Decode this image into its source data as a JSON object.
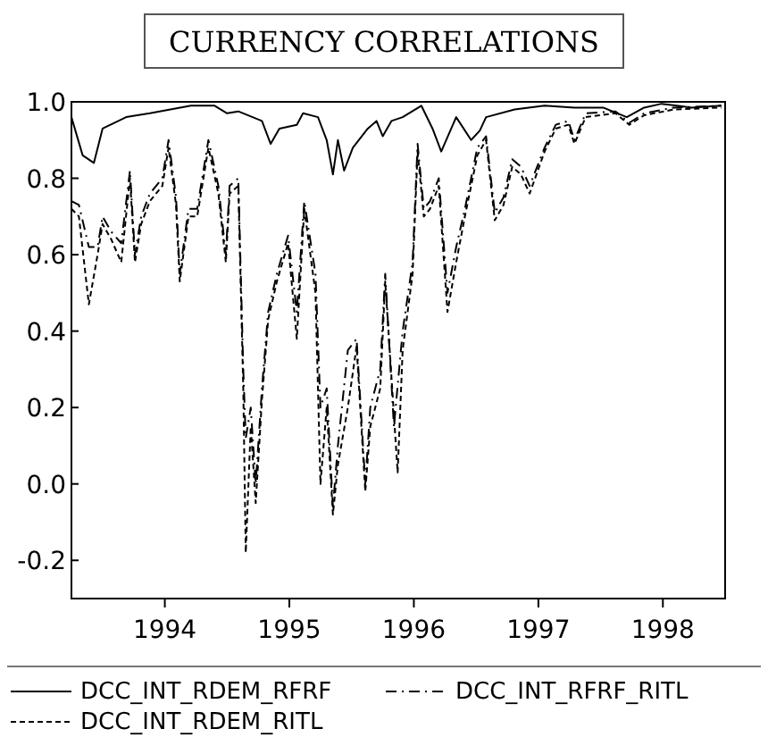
{
  "chart_data": {
    "type": "line",
    "title": "CURRENCY CORRELATIONS",
    "xlim": [
      1993.25,
      1998.5
    ],
    "xticks": [
      {
        "value": 1994,
        "label": "1994"
      },
      {
        "value": 1995,
        "label": "1995"
      },
      {
        "value": 1996,
        "label": "1996"
      },
      {
        "value": 1997,
        "label": "1997"
      },
      {
        "value": 1998,
        "label": "1998"
      }
    ],
    "ylim": [
      -0.3,
      1.0
    ],
    "yticks": [
      {
        "value": -0.2,
        "label": "-0.2"
      },
      {
        "value": 0,
        "label": "0.0"
      },
      {
        "value": 0.2,
        "label": "0.2"
      },
      {
        "value": 0.4,
        "label": "0.4"
      },
      {
        "value": 0.6,
        "label": "0.6"
      },
      {
        "value": 0.8,
        "label": "0.8"
      },
      {
        "value": 1,
        "label": "1.0"
      }
    ],
    "legend": "bottom",
    "grid": false,
    "series": [
      {
        "name": "DCC_INT_RDEM_RFRF",
        "color": "#000000",
        "line_style": "solid",
        "x": [
          1993.25,
          1993.34,
          1993.43,
          1993.5,
          1993.69,
          1993.88,
          1994.21,
          1994.4,
          1994.5,
          1994.59,
          1994.78,
          1994.85,
          1994.92,
          1995.06,
          1995.11,
          1995.23,
          1995.3,
          1995.35,
          1995.39,
          1995.44,
          1995.51,
          1995.63,
          1995.7,
          1995.75,
          1995.82,
          1995.91,
          1996.06,
          1996.15,
          1996.22,
          1996.34,
          1996.46,
          1996.53,
          1996.58,
          1996.81,
          1997.05,
          1997.29,
          1997.52,
          1997.71,
          1997.85,
          1997.99,
          1998.23,
          1998.47
        ],
        "values": [
          0.96,
          0.86,
          0.84,
          0.93,
          0.96,
          0.97,
          0.99,
          0.99,
          0.97,
          0.975,
          0.95,
          0.89,
          0.93,
          0.94,
          0.97,
          0.96,
          0.9,
          0.81,
          0.9,
          0.82,
          0.88,
          0.93,
          0.95,
          0.91,
          0.95,
          0.96,
          0.99,
          0.93,
          0.87,
          0.96,
          0.9,
          0.925,
          0.96,
          0.98,
          0.99,
          0.985,
          0.985,
          0.96,
          0.985,
          0.995,
          0.985,
          0.99
        ]
      },
      {
        "name": "DCC_INT_RFRF_RITL",
        "color": "#000000",
        "line_style": "dashdot",
        "x": [
          1993.25,
          1993.31,
          1993.39,
          1993.46,
          1993.5,
          1993.57,
          1993.65,
          1993.72,
          1993.76,
          1993.81,
          1993.88,
          1993.98,
          1994.03,
          1994.09,
          1994.12,
          1994.19,
          1994.26,
          1994.35,
          1994.43,
          1994.49,
          1994.52,
          1994.59,
          1994.63,
          1994.65,
          1994.69,
          1994.73,
          1994.78,
          1994.83,
          1994.9,
          1994.99,
          1995.06,
          1995.12,
          1995.21,
          1995.25,
          1995.3,
          1995.35,
          1995.39,
          1995.47,
          1995.54,
          1995.61,
          1995.65,
          1995.73,
          1995.77,
          1995.84,
          1995.91,
          1995.99,
          1996.03,
          1996.08,
          1996.13,
          1996.2,
          1996.27,
          1996.34,
          1996.41,
          1996.51,
          1996.58,
          1996.65,
          1996.72,
          1996.79,
          1996.86,
          1996.93,
          1997.05,
          1997.14,
          1997.24,
          1997.29,
          1997.38,
          1997.62,
          1997.73,
          1997.85,
          1998.09,
          1998.47
        ],
        "values": [
          0.74,
          0.73,
          0.62,
          0.62,
          0.7,
          0.66,
          0.63,
          0.82,
          0.6,
          0.7,
          0.76,
          0.8,
          0.9,
          0.75,
          0.55,
          0.72,
          0.72,
          0.9,
          0.78,
          0.6,
          0.78,
          0.8,
          0.3,
          0.12,
          0.2,
          0.0,
          0.25,
          0.45,
          0.55,
          0.65,
          0.45,
          0.74,
          0.55,
          0.2,
          0.25,
          -0.06,
          0.1,
          0.35,
          0.38,
          0.0,
          0.2,
          0.3,
          0.55,
          0.15,
          0.4,
          0.58,
          0.89,
          0.72,
          0.74,
          0.8,
          0.5,
          0.62,
          0.72,
          0.88,
          0.91,
          0.71,
          0.75,
          0.85,
          0.83,
          0.78,
          0.88,
          0.94,
          0.95,
          0.9,
          0.97,
          0.975,
          0.945,
          0.97,
          0.985,
          0.99
        ]
      },
      {
        "name": "DCC_INT_RDEM_RITL",
        "color": "#000000",
        "line_style": "dashed",
        "x": [
          1993.25,
          1993.31,
          1993.39,
          1993.46,
          1993.5,
          1993.57,
          1993.65,
          1993.72,
          1993.76,
          1993.81,
          1993.88,
          1993.98,
          1994.03,
          1994.09,
          1994.12,
          1994.19,
          1994.26,
          1994.35,
          1994.43,
          1994.49,
          1994.52,
          1994.59,
          1994.63,
          1994.65,
          1994.69,
          1994.73,
          1994.78,
          1994.83,
          1994.9,
          1994.99,
          1995.06,
          1995.12,
          1995.21,
          1995.25,
          1995.3,
          1995.35,
          1995.39,
          1995.47,
          1995.54,
          1995.61,
          1995.65,
          1995.73,
          1995.77,
          1995.87,
          1995.91,
          1995.99,
          1996.03,
          1996.08,
          1996.13,
          1996.2,
          1996.27,
          1996.34,
          1996.41,
          1996.51,
          1996.58,
          1996.65,
          1996.72,
          1996.79,
          1996.86,
          1996.93,
          1997.05,
          1997.14,
          1997.24,
          1997.29,
          1997.38,
          1997.62,
          1997.73,
          1997.85,
          1998.09,
          1998.47
        ],
        "values": [
          0.72,
          0.7,
          0.47,
          0.6,
          0.68,
          0.64,
          0.58,
          0.8,
          0.58,
          0.68,
          0.74,
          0.78,
          0.88,
          0.73,
          0.53,
          0.7,
          0.7,
          0.88,
          0.76,
          0.58,
          0.76,
          0.78,
          0.25,
          -0.18,
          0.15,
          -0.05,
          0.22,
          0.43,
          0.53,
          0.63,
          0.38,
          0.72,
          0.5,
          0.0,
          0.2,
          -0.08,
          0.05,
          0.2,
          0.36,
          -0.02,
          0.15,
          0.25,
          0.53,
          0.03,
          0.35,
          0.55,
          0.87,
          0.7,
          0.72,
          0.78,
          0.45,
          0.58,
          0.7,
          0.86,
          0.9,
          0.69,
          0.73,
          0.83,
          0.81,
          0.76,
          0.87,
          0.93,
          0.94,
          0.89,
          0.96,
          0.97,
          0.94,
          0.965,
          0.98,
          0.985
        ]
      }
    ]
  }
}
